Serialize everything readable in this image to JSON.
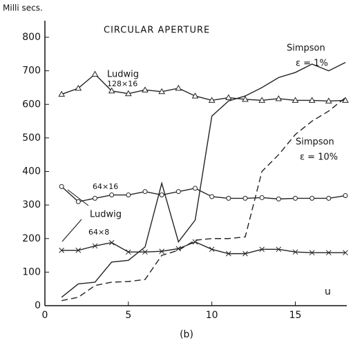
{
  "chart_data": {
    "type": "line",
    "title": "CIRCULAR APERTURE",
    "y_label": "Milli secs.",
    "x_label": "u",
    "caption": "(b)",
    "x": [
      1,
      2,
      3,
      4,
      5,
      6,
      7,
      8,
      9,
      10,
      11,
      12,
      13,
      14,
      15,
      16,
      17,
      18
    ],
    "series": [
      {
        "marker": "triangle",
        "dash": false,
        "color": "#222222",
        "values": [
          630,
          648,
          690,
          640,
          632,
          643,
          638,
          648,
          625,
          612,
          620,
          615,
          612,
          617,
          612,
          612,
          610,
          612
        ]
      },
      {
        "marker": "circle",
        "dash": false,
        "color": "#222222",
        "values": [
          355,
          310,
          320,
          330,
          330,
          340,
          330,
          340,
          350,
          325,
          320,
          320,
          322,
          318,
          320,
          320,
          320,
          328
        ]
      },
      {
        "marker": "cross",
        "dash": false,
        "color": "#222222",
        "values": [
          165,
          165,
          178,
          188,
          160,
          160,
          162,
          170,
          190,
          168,
          155,
          155,
          168,
          168,
          160,
          158,
          158,
          158
        ]
      },
      {
        "marker": "none",
        "dash": false,
        "color": "#222222",
        "values": [
          25,
          65,
          70,
          130,
          135,
          175,
          365,
          190,
          255,
          565,
          610,
          625,
          650,
          680,
          695,
          720,
          700,
          725
        ]
      },
      {
        "marker": "none",
        "dash": true,
        "color": "#222222",
        "values": [
          15,
          25,
          60,
          70,
          72,
          78,
          150,
          165,
          195,
          200,
          200,
          205,
          400,
          450,
          510,
          550,
          580,
          620
        ]
      }
    ],
    "annotations": [
      "Ludwig",
      "128×16",
      "64×16",
      "Ludwig",
      "64×8",
      "Simpson",
      "ε = 1%",
      "Simpson",
      "ε = 10%"
    ],
    "xlim": [
      0,
      18
    ],
    "ylim": [
      0,
      800
    ],
    "xticks": [
      0,
      5,
      10,
      15
    ],
    "yticks": [
      0,
      100,
      200,
      300,
      400,
      500,
      600,
      700,
      800
    ]
  }
}
